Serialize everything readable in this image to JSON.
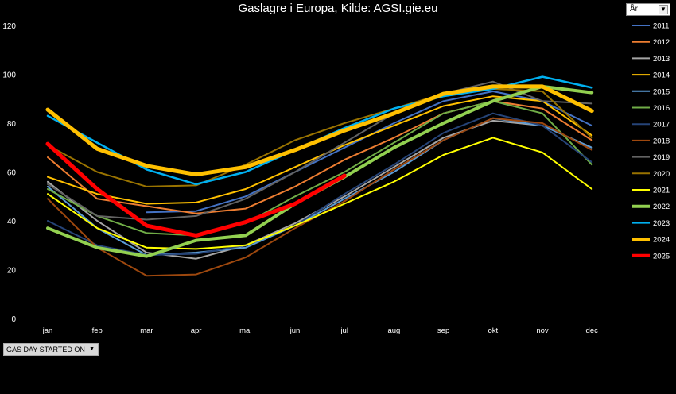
{
  "title": "Gaslagre i Europa, Kilde: AGSI.gie.eu",
  "legend_header": "År",
  "field_button": "GAS DAY STARTED ON",
  "chart_data": {
    "type": "line",
    "title": "Gaslagre i Europa, Kilde: AGSI.gie.eu",
    "categories": [
      "jan",
      "feb",
      "mar",
      "apr",
      "maj",
      "jun",
      "jul",
      "aug",
      "sep",
      "okt",
      "nov",
      "dec"
    ],
    "ylim": [
      0,
      120
    ],
    "yticks": [
      0,
      20,
      40,
      60,
      80,
      100,
      120
    ],
    "grid": false,
    "legend_position": "right",
    "series": [
      {
        "name": "2011",
        "color": "#4472c4",
        "width": 2,
        "values": [
          null,
          null,
          43.5,
          44,
          50,
          60,
          70,
          80,
          89,
          93,
          89,
          79
        ]
      },
      {
        "name": "2012",
        "color": "#ed7d31",
        "width": 2,
        "values": [
          66,
          49,
          46,
          43,
          45,
          54,
          65,
          74,
          84,
          89,
          86,
          73
        ]
      },
      {
        "name": "2013",
        "color": "#a5a5a5",
        "width": 2,
        "values": [
          56,
          40,
          27,
          24.5,
          30,
          39,
          50,
          62,
          74,
          81,
          79,
          70
        ]
      },
      {
        "name": "2014",
        "color": "#ffc000",
        "width": 2,
        "values": [
          58,
          51,
          47,
          47.5,
          53,
          62,
          71,
          79,
          87,
          91,
          89,
          75
        ]
      },
      {
        "name": "2015",
        "color": "#5b9bd5",
        "width": 2,
        "values": [
          54,
          37,
          26,
          27,
          29,
          38,
          49,
          60,
          73,
          82,
          79,
          70
        ]
      },
      {
        "name": "2016",
        "color": "#70ad47",
        "width": 2,
        "values": [
          53,
          42,
          35,
          34,
          39,
          50,
          60,
          72,
          84,
          89,
          84,
          63
        ]
      },
      {
        "name": "2017",
        "color": "#264478",
        "width": 2,
        "values": [
          40,
          30,
          26,
          26.5,
          30,
          38,
          51,
          63,
          76,
          84,
          79,
          64
        ]
      },
      {
        "name": "2018",
        "color": "#9e480e",
        "width": 2,
        "values": [
          49,
          29,
          17.5,
          18,
          25,
          37,
          48,
          61,
          73,
          82,
          80,
          69
        ]
      },
      {
        "name": "2019",
        "color": "#636363",
        "width": 2,
        "values": [
          55,
          42,
          40.5,
          42,
          49,
          60,
          72,
          84,
          92,
          97,
          89,
          88
        ]
      },
      {
        "name": "2020",
        "color": "#997300",
        "width": 2,
        "values": [
          71,
          60,
          54,
          54.5,
          63,
          73,
          80,
          86,
          92,
          94,
          93,
          74
        ]
      },
      {
        "name": "2021",
        "color": "#ffff00",
        "width": 2,
        "values": [
          51,
          37,
          29,
          28.5,
          30,
          38,
          47,
          56,
          67,
          74,
          68,
          53
        ]
      },
      {
        "name": "2022",
        "color": "#92d050",
        "width": 4,
        "values": [
          37,
          29,
          25.5,
          32,
          34,
          47,
          58,
          70,
          80,
          89,
          95,
          92.5
        ]
      },
      {
        "name": "2023",
        "color": "#00b0f0",
        "width": 2.5,
        "values": [
          83,
          72,
          61,
          55,
          60,
          69,
          78,
          86,
          91,
          94,
          99,
          94.5
        ]
      },
      {
        "name": "2024",
        "color": "#ffc000",
        "width": 5,
        "values": [
          85.5,
          69.5,
          62.5,
          59,
          62,
          69,
          77,
          84,
          92,
          95,
          95,
          85
        ]
      },
      {
        "name": "2025",
        "color": "#ff0000",
        "width": 5,
        "values": [
          71.5,
          53,
          38,
          34,
          39.5,
          47,
          58.5,
          null,
          null,
          null,
          null,
          null
        ]
      }
    ]
  }
}
